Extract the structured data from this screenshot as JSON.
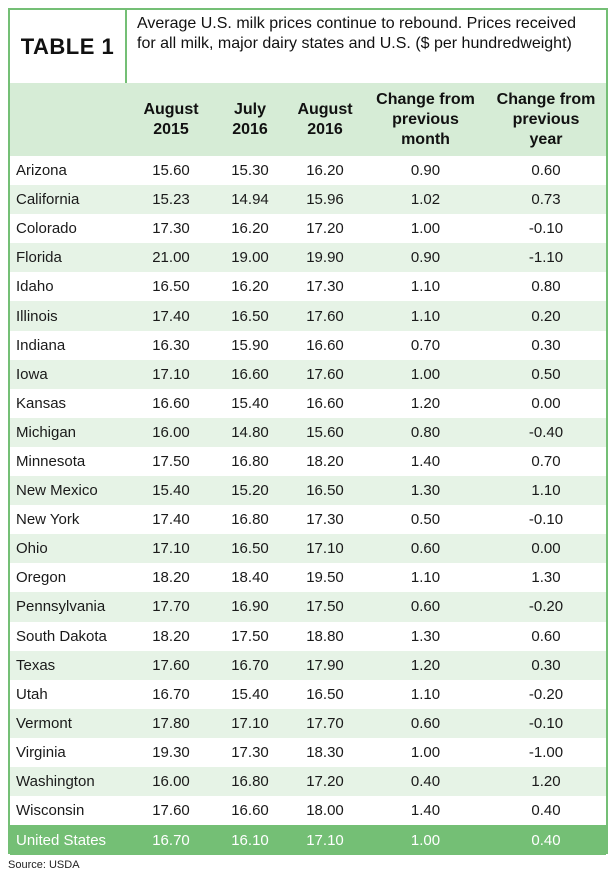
{
  "table_label": "TABLE 1",
  "title": "Average U.S. milk prices continue to rebound. Prices received for all milk, major dairy states and U.S. ($ per hundredweight)",
  "columns": [
    "",
    "August\n2015",
    "July\n2016",
    "August\n2016",
    "Change from\nprevious\nmonth",
    "Change from\nprevious\nyear"
  ],
  "rows": [
    [
      "Arizona",
      "15.60",
      "15.30",
      "16.20",
      "0.90",
      "0.60"
    ],
    [
      "California",
      "15.23",
      "14.94",
      "15.96",
      "1.02",
      "0.73"
    ],
    [
      "Colorado",
      "17.30",
      "16.20",
      "17.20",
      "1.00",
      "-0.10"
    ],
    [
      "Florida",
      "21.00",
      "19.00",
      "19.90",
      "0.90",
      "-1.10"
    ],
    [
      "Idaho",
      "16.50",
      "16.20",
      "17.30",
      "1.10",
      "0.80"
    ],
    [
      "Illinois",
      "17.40",
      "16.50",
      "17.60",
      "1.10",
      "0.20"
    ],
    [
      "Indiana",
      "16.30",
      "15.90",
      "16.60",
      "0.70",
      "0.30"
    ],
    [
      "Iowa",
      "17.10",
      "16.60",
      "17.60",
      "1.00",
      "0.50"
    ],
    [
      "Kansas",
      "16.60",
      "15.40",
      "16.60",
      "1.20",
      "0.00"
    ],
    [
      "Michigan",
      "16.00",
      "14.80",
      "15.60",
      "0.80",
      "-0.40"
    ],
    [
      "Minnesota",
      "17.50",
      "16.80",
      "18.20",
      "1.40",
      "0.70"
    ],
    [
      "New Mexico",
      "15.40",
      "15.20",
      "16.50",
      "1.30",
      "1.10"
    ],
    [
      "New York",
      "17.40",
      "16.80",
      "17.30",
      "0.50",
      "-0.10"
    ],
    [
      "Ohio",
      "17.10",
      "16.50",
      "17.10",
      "0.60",
      "0.00"
    ],
    [
      "Oregon",
      "18.20",
      "18.40",
      "19.50",
      "1.10",
      "1.30"
    ],
    [
      "Pennsylvania",
      "17.70",
      "16.90",
      "17.50",
      "0.60",
      "-0.20"
    ],
    [
      "South Dakota",
      "18.20",
      "17.50",
      "18.80",
      "1.30",
      "0.60"
    ],
    [
      "Texas",
      "17.60",
      "16.70",
      "17.90",
      "1.20",
      "0.30"
    ],
    [
      "Utah",
      "16.70",
      "15.40",
      "16.50",
      "1.10",
      "-0.20"
    ],
    [
      "Vermont",
      "17.80",
      "17.10",
      "17.70",
      "0.60",
      "-0.10"
    ],
    [
      "Virginia",
      "19.30",
      "17.30",
      "18.30",
      "1.00",
      "-1.00"
    ],
    [
      "Washington",
      "16.00",
      "16.80",
      "17.20",
      "0.40",
      "1.20"
    ],
    [
      "Wisconsin",
      "17.60",
      "16.60",
      "18.00",
      "1.40",
      "0.40"
    ]
  ],
  "total_row": [
    "United States",
    "16.70",
    "16.10",
    "17.10",
    "1.00",
    "0.40"
  ],
  "source": "Source: USDA",
  "colors": {
    "accent": "#74bf75",
    "header_bg": "#d6ecd6",
    "stripe": "#e6f3e6"
  }
}
